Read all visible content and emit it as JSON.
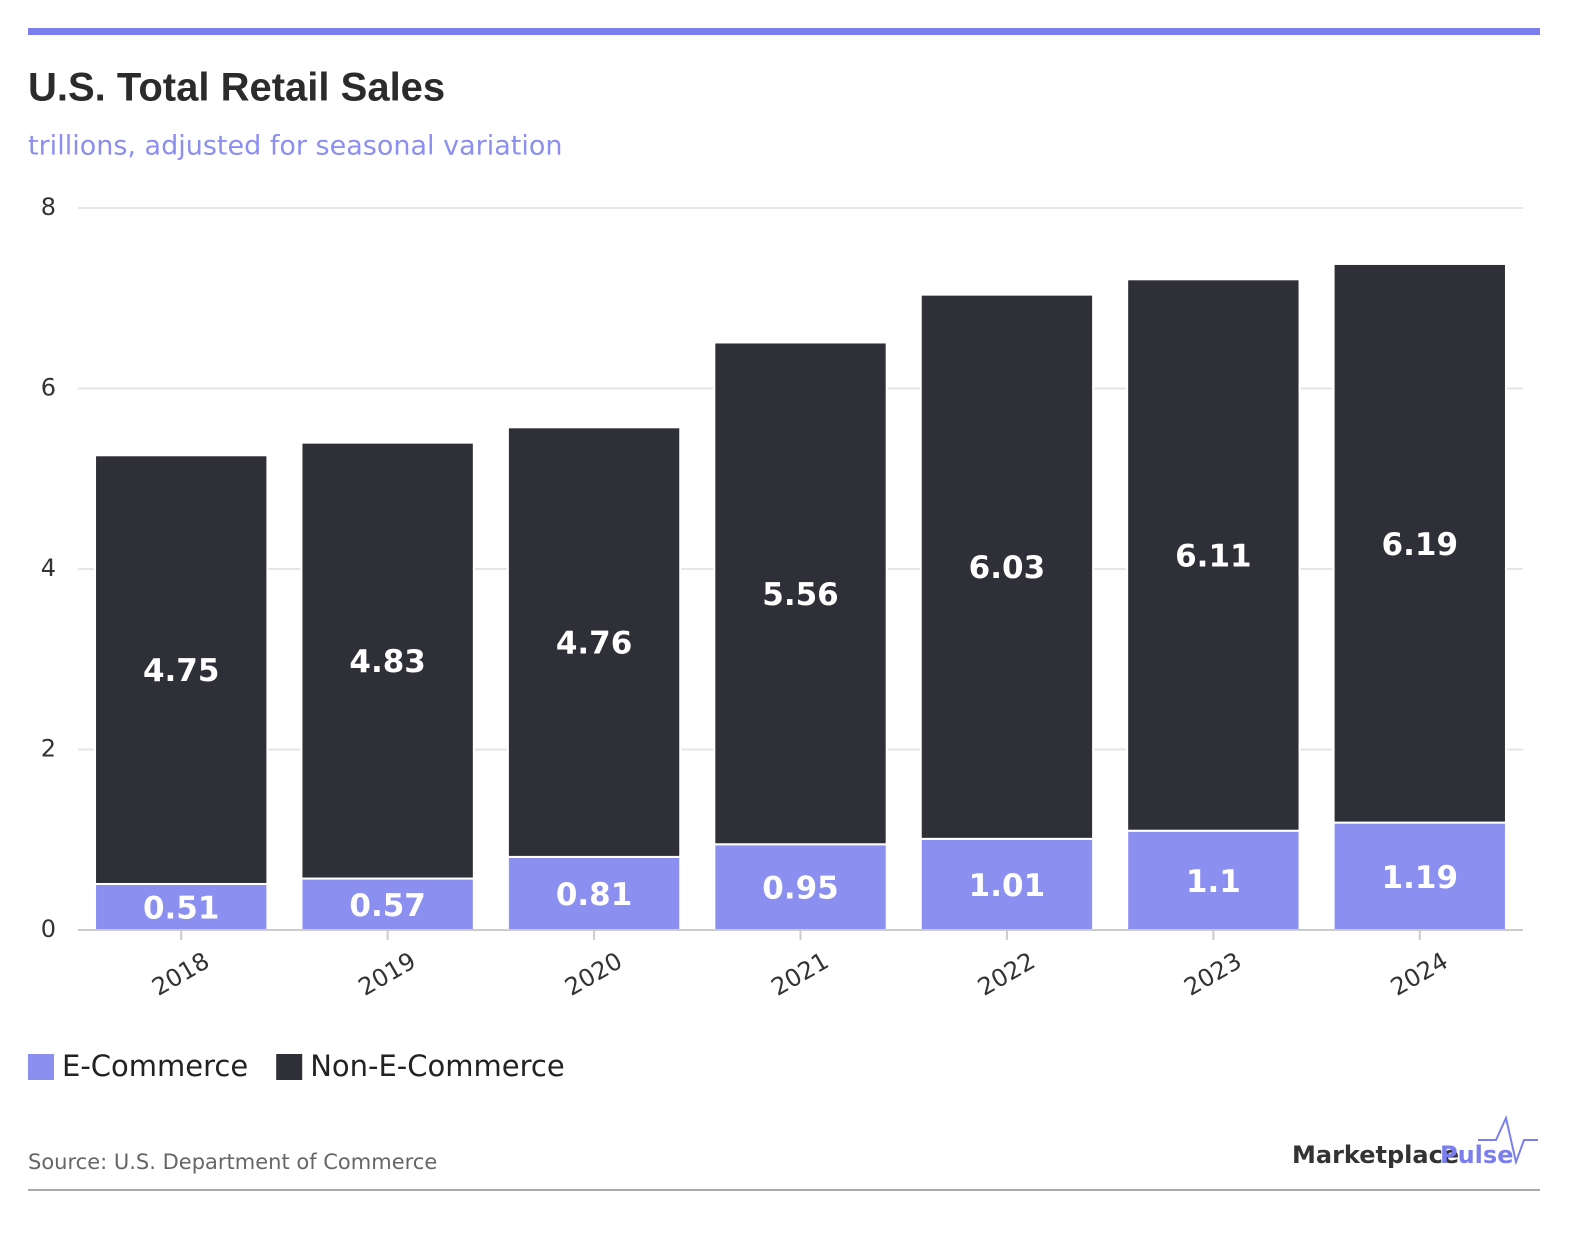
{
  "chart_data": {
    "type": "bar",
    "stacked": true,
    "title": "U.S. Total Retail Sales",
    "subtitle": "trillions, adjusted for seasonal variation",
    "categories": [
      "2018",
      "2019",
      "2020",
      "2021",
      "2022",
      "2023",
      "2024"
    ],
    "series": [
      {
        "name": "E-Commerce",
        "color": "#8b8ff0",
        "values": [
          0.51,
          0.57,
          0.81,
          0.95,
          1.01,
          1.1,
          1.19
        ]
      },
      {
        "name": "Non-E-Commerce",
        "color": "#2f2f37",
        "values": [
          4.75,
          4.83,
          4.76,
          5.56,
          6.03,
          6.11,
          6.19
        ]
      }
    ],
    "ylim": [
      0,
      8
    ],
    "yticks": [
      0,
      2,
      4,
      6,
      8
    ],
    "grid": true,
    "legend": "bottom-left",
    "source": "Source: U.S. Department of Commerce",
    "brand": [
      "Marketplace",
      "Pulse"
    ]
  }
}
